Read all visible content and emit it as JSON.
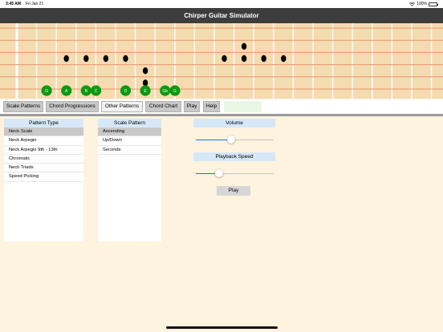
{
  "status_bar": {
    "time": "3:45 AM",
    "date": "Fri Jan 21",
    "battery": "100%"
  },
  "app": {
    "title": "Chirper Guitar Simulator"
  },
  "fretboard": {
    "dots": [
      {
        "fret": 11,
        "string": 2
      },
      {
        "fret": 2,
        "string": 3
      },
      {
        "fret": 3,
        "string": 3
      },
      {
        "fret": 4,
        "string": 3
      },
      {
        "fret": 5,
        "string": 3
      },
      {
        "fret": 10,
        "string": 3
      },
      {
        "fret": 11,
        "string": 3
      },
      {
        "fret": 12,
        "string": 3
      },
      {
        "fret": 13,
        "string": 3
      },
      {
        "fret": 6,
        "string": 4
      },
      {
        "fret": 6,
        "string": 5
      }
    ],
    "notes": [
      {
        "label": "G",
        "fret": 2
      },
      {
        "label": "A",
        "fret": 3
      },
      {
        "label": "B",
        "fret": 4
      },
      {
        "label": "C",
        "fret": 4.5
      },
      {
        "label": "D",
        "fret": 6
      },
      {
        "label": "E",
        "fret": 7
      },
      {
        "label": "Gb",
        "fret": 8
      },
      {
        "label": "G",
        "fret": 8.5
      }
    ],
    "colors": {
      "wood": "#f4dbb0",
      "string": "#e8956f",
      "fret": "#ffffff",
      "note": "#0b9a10"
    }
  },
  "toolbar": {
    "scale_patterns": "Scale Patterns",
    "chord_progressions": "Chord Progressions",
    "other_patterns": "Other Patterns",
    "chord_chart": "Chord Chart",
    "play": "Play",
    "help": "Help"
  },
  "pattern_type": {
    "header": "Pattern Type",
    "items": [
      "Neck Scale",
      "Neck Arpegio",
      "Neck Arpegio 9th - 13th",
      "Chromatic",
      "Neck Triads",
      "Speed Picking"
    ],
    "selected": 0
  },
  "scale_pattern": {
    "header": "Scale Pattern",
    "items": [
      "Ascending",
      "Up/Down",
      "Seconds"
    ],
    "selected": 0
  },
  "controls": {
    "volume_label": "Volume",
    "volume_value": 0.45,
    "speed_label": "Playback Speed",
    "speed_value": 0.3,
    "play_label": "Play"
  }
}
